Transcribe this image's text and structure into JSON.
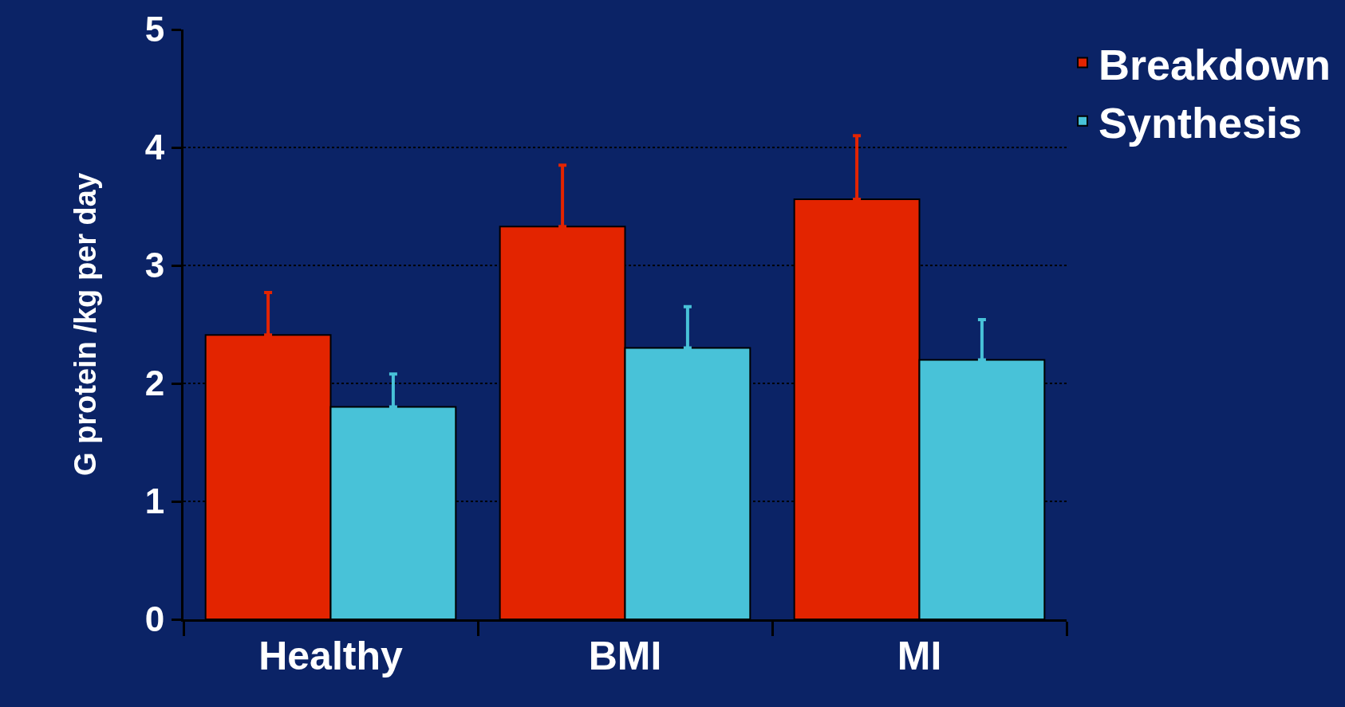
{
  "chart_data": {
    "type": "bar",
    "ylabel": "G protein /kg per day",
    "categories": [
      "Healthy",
      "BMI",
      "MI"
    ],
    "series": [
      {
        "name": "Breakdown",
        "color": "#e32400",
        "values": [
          2.41,
          3.33,
          3.56
        ],
        "errors": [
          [
            2.41,
            2.77
          ],
          [
            3.33,
            3.85
          ],
          [
            3.56,
            4.1
          ]
        ]
      },
      {
        "name": "Synthesis",
        "color": "#48c2d8",
        "values": [
          1.8,
          2.3,
          2.2
        ],
        "errors": [
          [
            1.8,
            2.08
          ],
          [
            2.3,
            2.65
          ],
          [
            2.2,
            2.54
          ]
        ]
      }
    ],
    "ylim": [
      0,
      5
    ],
    "yticks": [
      0,
      1,
      2,
      3,
      4,
      5
    ],
    "grid": "y",
    "legend": "top right"
  }
}
